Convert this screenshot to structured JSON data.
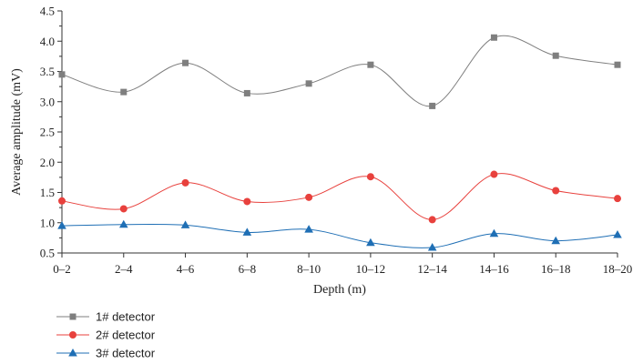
{
  "chart_data": {
    "type": "line",
    "categories": [
      "0–2",
      "2–4",
      "4–6",
      "6–8",
      "8–10",
      "10–12",
      "12–14",
      "14–16",
      "16–18",
      "18–20"
    ],
    "xlabel": "Depth (m)",
    "ylabel": "Average amplitude (mV)",
    "ylim": [
      0.5,
      4.5
    ],
    "yticks": [
      0.5,
      1.0,
      1.5,
      2.0,
      2.5,
      3.0,
      3.5,
      4.0,
      4.5
    ],
    "ytick_labels": [
      "0.5",
      "1.0",
      "1.5",
      "2.0",
      "2.5",
      "3.0",
      "3.5",
      "4.0",
      "4.5"
    ],
    "grid": false,
    "legend_position": "bottom-left",
    "series": [
      {
        "name": "1# detector",
        "color": "#7f7f7f",
        "marker": "square",
        "values": [
          3.45,
          3.16,
          3.64,
          3.14,
          3.3,
          3.61,
          2.93,
          4.06,
          3.76,
          3.61
        ]
      },
      {
        "name": "2# detector",
        "color": "#e8413d",
        "marker": "circle",
        "values": [
          1.36,
          1.23,
          1.66,
          1.35,
          1.42,
          1.76,
          1.05,
          1.8,
          1.53,
          1.4
        ]
      },
      {
        "name": "3# detector",
        "color": "#1f6fb5",
        "marker": "triangle",
        "values": [
          0.95,
          0.97,
          0.96,
          0.84,
          0.89,
          0.67,
          0.59,
          0.82,
          0.7,
          0.8
        ]
      }
    ]
  }
}
